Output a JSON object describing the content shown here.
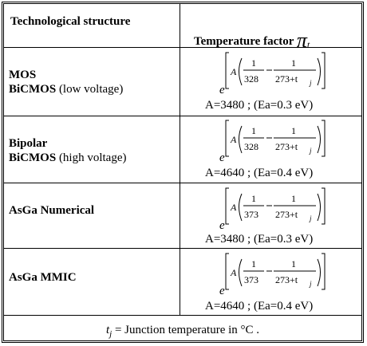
{
  "header": {
    "col1": "Technological structure",
    "col2": "Temperature factor",
    "symbol": "π",
    "symbol_sub": "t"
  },
  "rows": [
    {
      "line1": "MOS",
      "line2_bold": "BiCMOS",
      "line2_rest": " (low voltage)",
      "ref": "328",
      "constant": "A=3480 ; (Ea=0.3 eV)"
    },
    {
      "line1": "Bipolar",
      "line2_bold": "BiCMOS",
      "line2_rest": " (high voltage)",
      "ref": "328",
      "constant": "A=4640 ; (Ea=0.4 eV)"
    },
    {
      "line1": "AsGa Numerical",
      "line2_bold": "",
      "line2_rest": "",
      "ref": "373",
      "constant": "A=3480 ; (Ea=0.3 eV)"
    },
    {
      "line1": "AsGa MMIC",
      "line2_bold": "",
      "line2_rest": "",
      "ref": "373",
      "constant": "A=4640 ; (Ea=0.4 eV)"
    }
  ],
  "formula": {
    "base": "e",
    "coef": "A",
    "numerator": "1",
    "denominator_var": "273+t",
    "denominator_sub": "j"
  },
  "footer": {
    "var": "t",
    "var_sub": "j",
    "text": " = Junction temperature in °C ."
  }
}
